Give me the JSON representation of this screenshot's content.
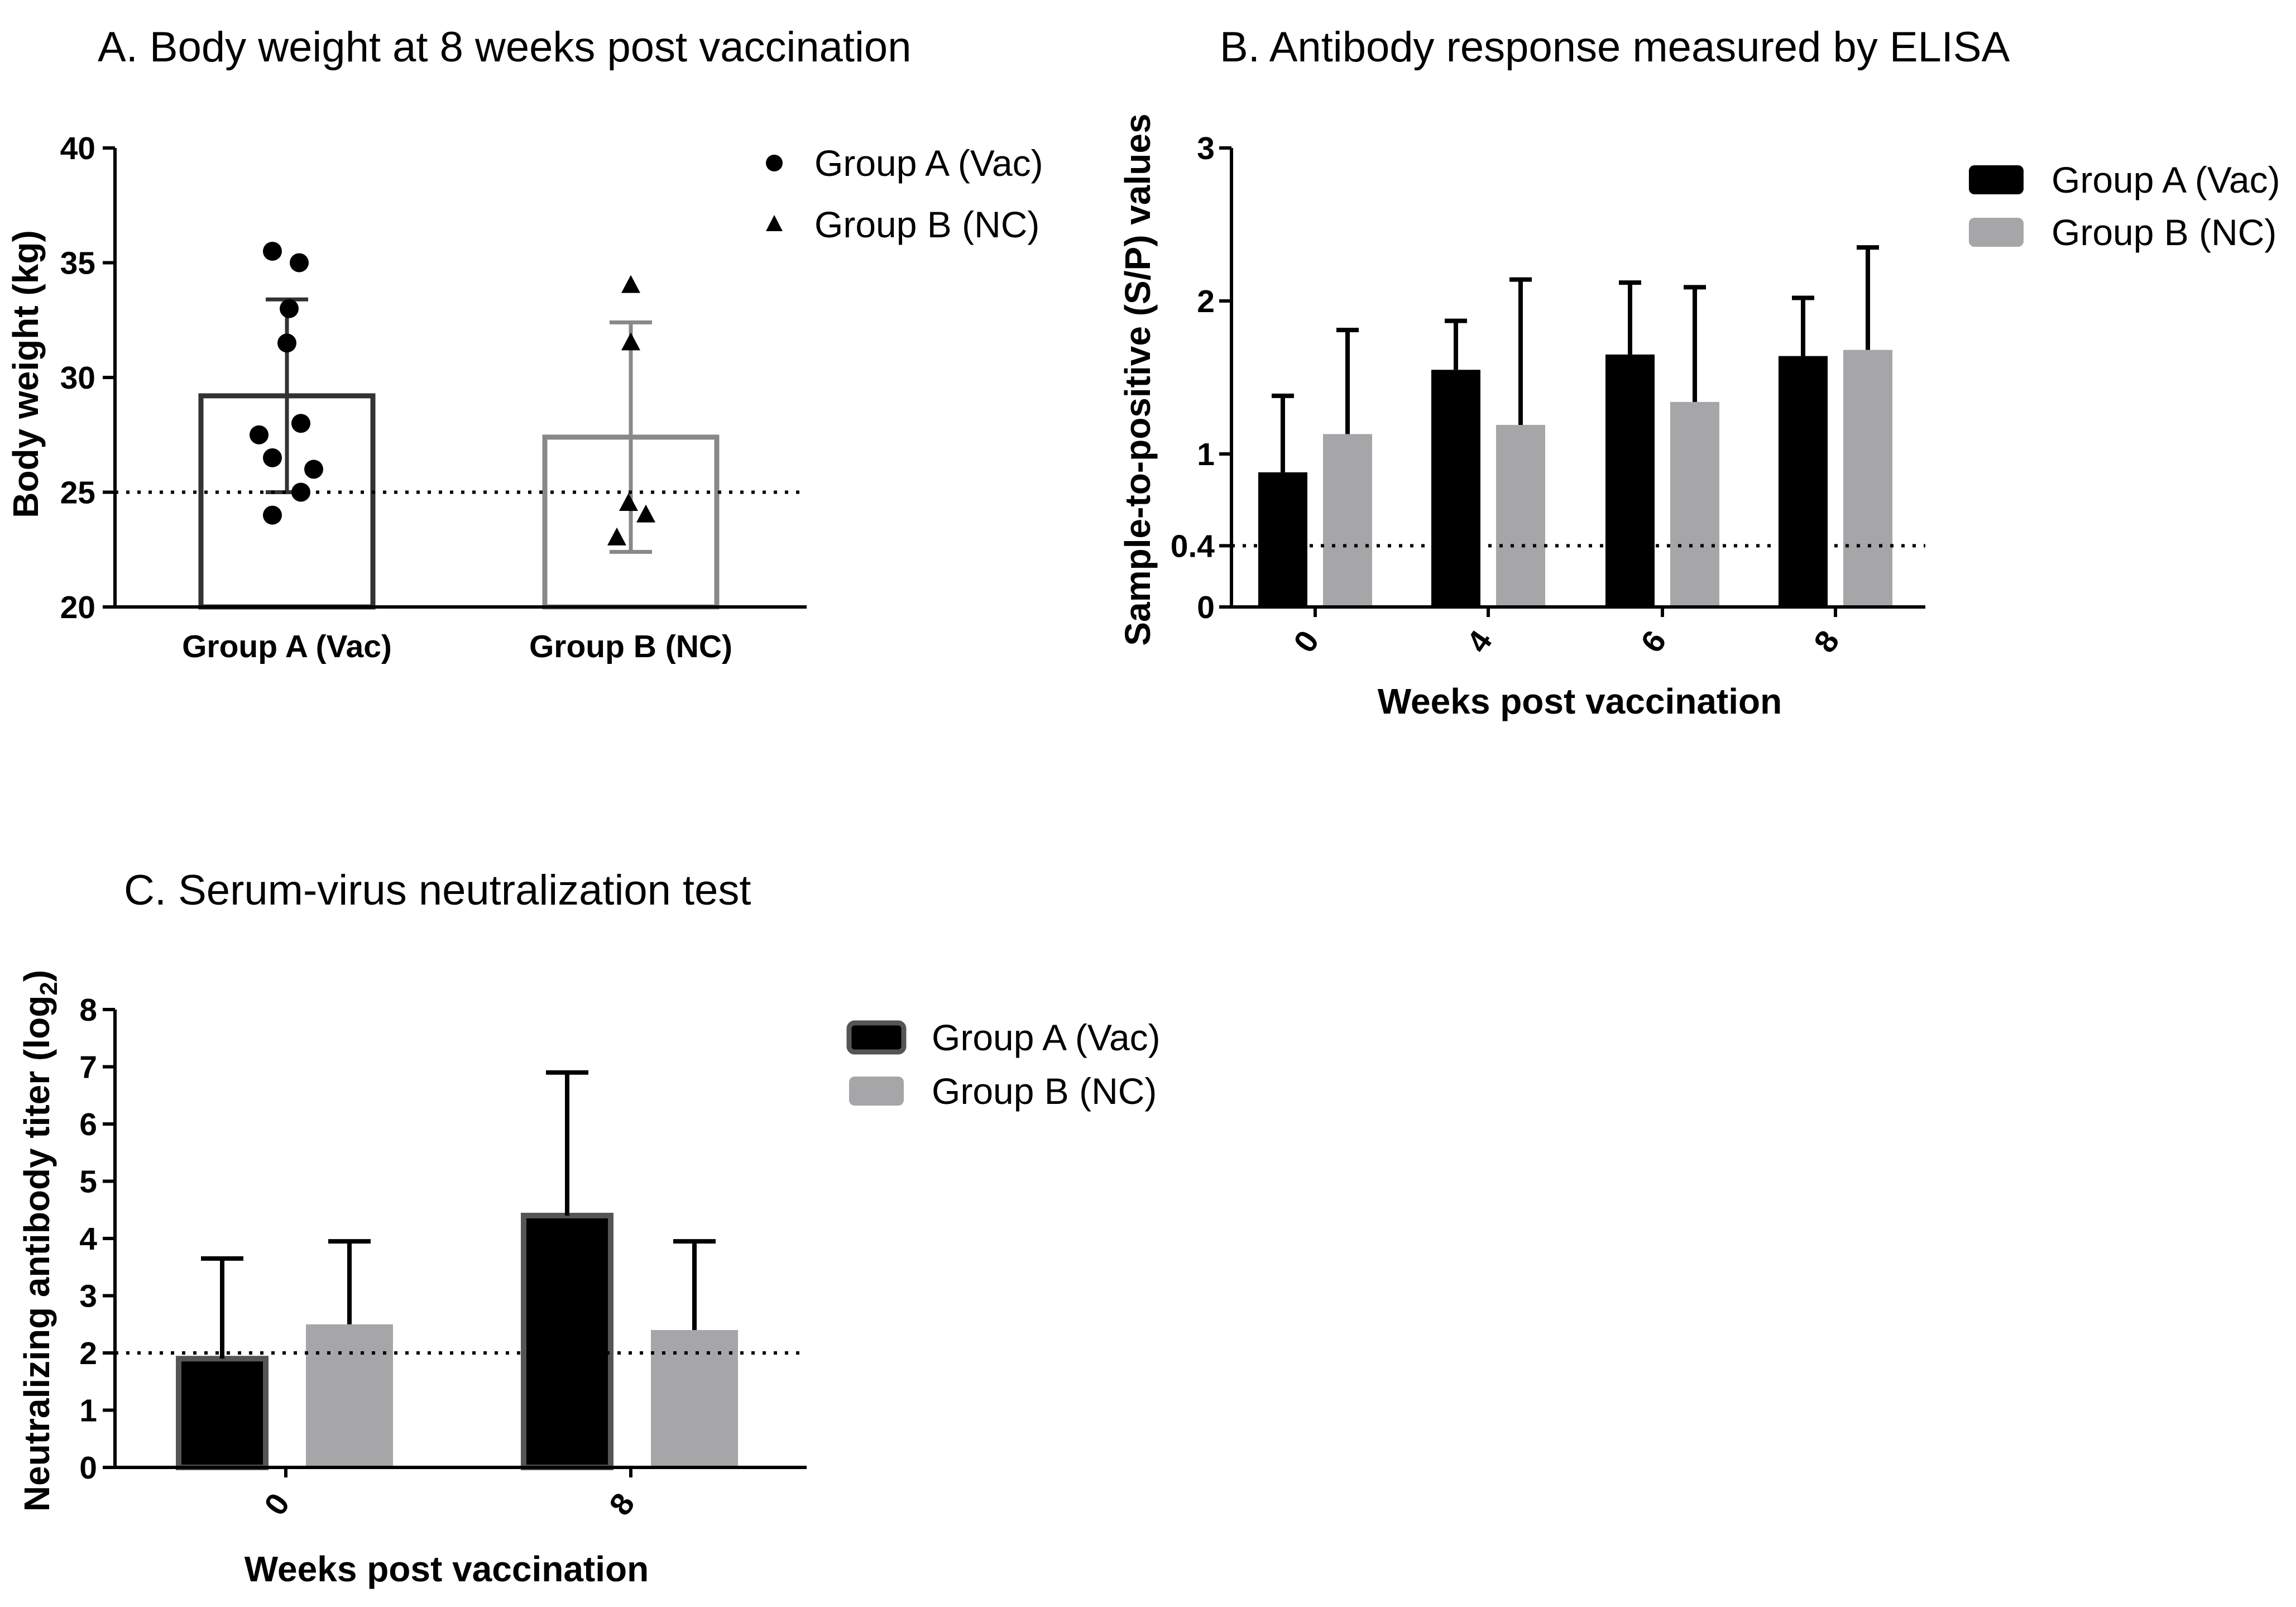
{
  "chart_data": [
    {
      "id": "A",
      "type": "bar",
      "title": "A. Body weight at 8 weeks post vaccination",
      "xlabel": "",
      "ylabel": "Body weight (kg)",
      "ylim": [
        20,
        40
      ],
      "yticks": [
        "20",
        "25",
        "30",
        "35",
        "40"
      ],
      "categories": [
        "Group A (Vac)",
        "Group B (NC)"
      ],
      "series": [
        {
          "name": "Group A (Vac)",
          "marker": "circle",
          "color": "#333333",
          "mean": 29.2,
          "sd_low": 25.0,
          "sd_high": 33.4,
          "points": [
            35.5,
            35.0,
            33.0,
            31.5,
            28.0,
            27.5,
            26.5,
            26.0,
            25.0,
            24.0
          ]
        },
        {
          "name": "Group B (NC)",
          "marker": "triangle",
          "color": "#888888",
          "mean": 27.4,
          "sd_low": 22.4,
          "sd_high": 32.4,
          "points": [
            34.0,
            31.5,
            24.5,
            24.0,
            23.0
          ]
        }
      ],
      "reference_line": 25,
      "legend": [
        "Group A (Vac)",
        "Group B (NC)"
      ],
      "legend_position": "top-right"
    },
    {
      "id": "B",
      "type": "bar",
      "title": "B. Antibody response measured by ELISA",
      "xlabel": "Weeks post vaccination",
      "ylabel": "Sample-to-positive (S/P) values",
      "ylim": [
        0,
        3
      ],
      "yticks": [
        "0",
        "0.4",
        "1",
        "2",
        "3"
      ],
      "categories": [
        "0",
        "4",
        "6",
        "8"
      ],
      "series": [
        {
          "name": "Group A (Vac)",
          "color": "#000000",
          "values": [
            0.88,
            1.55,
            1.65,
            1.64
          ],
          "errors": [
            0.5,
            0.32,
            0.47,
            0.38
          ]
        },
        {
          "name": "Group B (NC)",
          "color": "#a6a6a8",
          "values": [
            1.13,
            1.19,
            1.34,
            1.68
          ],
          "errors": [
            0.68,
            0.95,
            0.75,
            0.67
          ]
        }
      ],
      "reference_line": 0.4,
      "legend": [
        "Group A (Vac)",
        "Group B (NC)"
      ],
      "legend_position": "top-right"
    },
    {
      "id": "C",
      "type": "bar",
      "title": "C. Serum-virus neutralization test",
      "xlabel": "Weeks post vaccination",
      "ylabel": "Neutralizing antibody titer (log",
      "ylabel_sub": "2",
      "ylabel_end": ")",
      "ylim": [
        0,
        8
      ],
      "yticks": [
        "0",
        "1",
        "2",
        "3",
        "4",
        "5",
        "6",
        "7",
        "8"
      ],
      "categories": [
        "0",
        "8"
      ],
      "series": [
        {
          "name": "Group A (Vac)",
          "color": "#000000",
          "values": [
            1.9,
            4.4
          ],
          "errors": [
            1.75,
            2.5
          ]
        },
        {
          "name": "Group B (NC)",
          "color": "#a6a6a8",
          "values": [
            2.5,
            2.4
          ],
          "errors": [
            1.45,
            1.55
          ]
        }
      ],
      "reference_line": 2,
      "legend": [
        "Group A (Vac)",
        "Group B (NC)"
      ],
      "legend_position": "right"
    }
  ]
}
